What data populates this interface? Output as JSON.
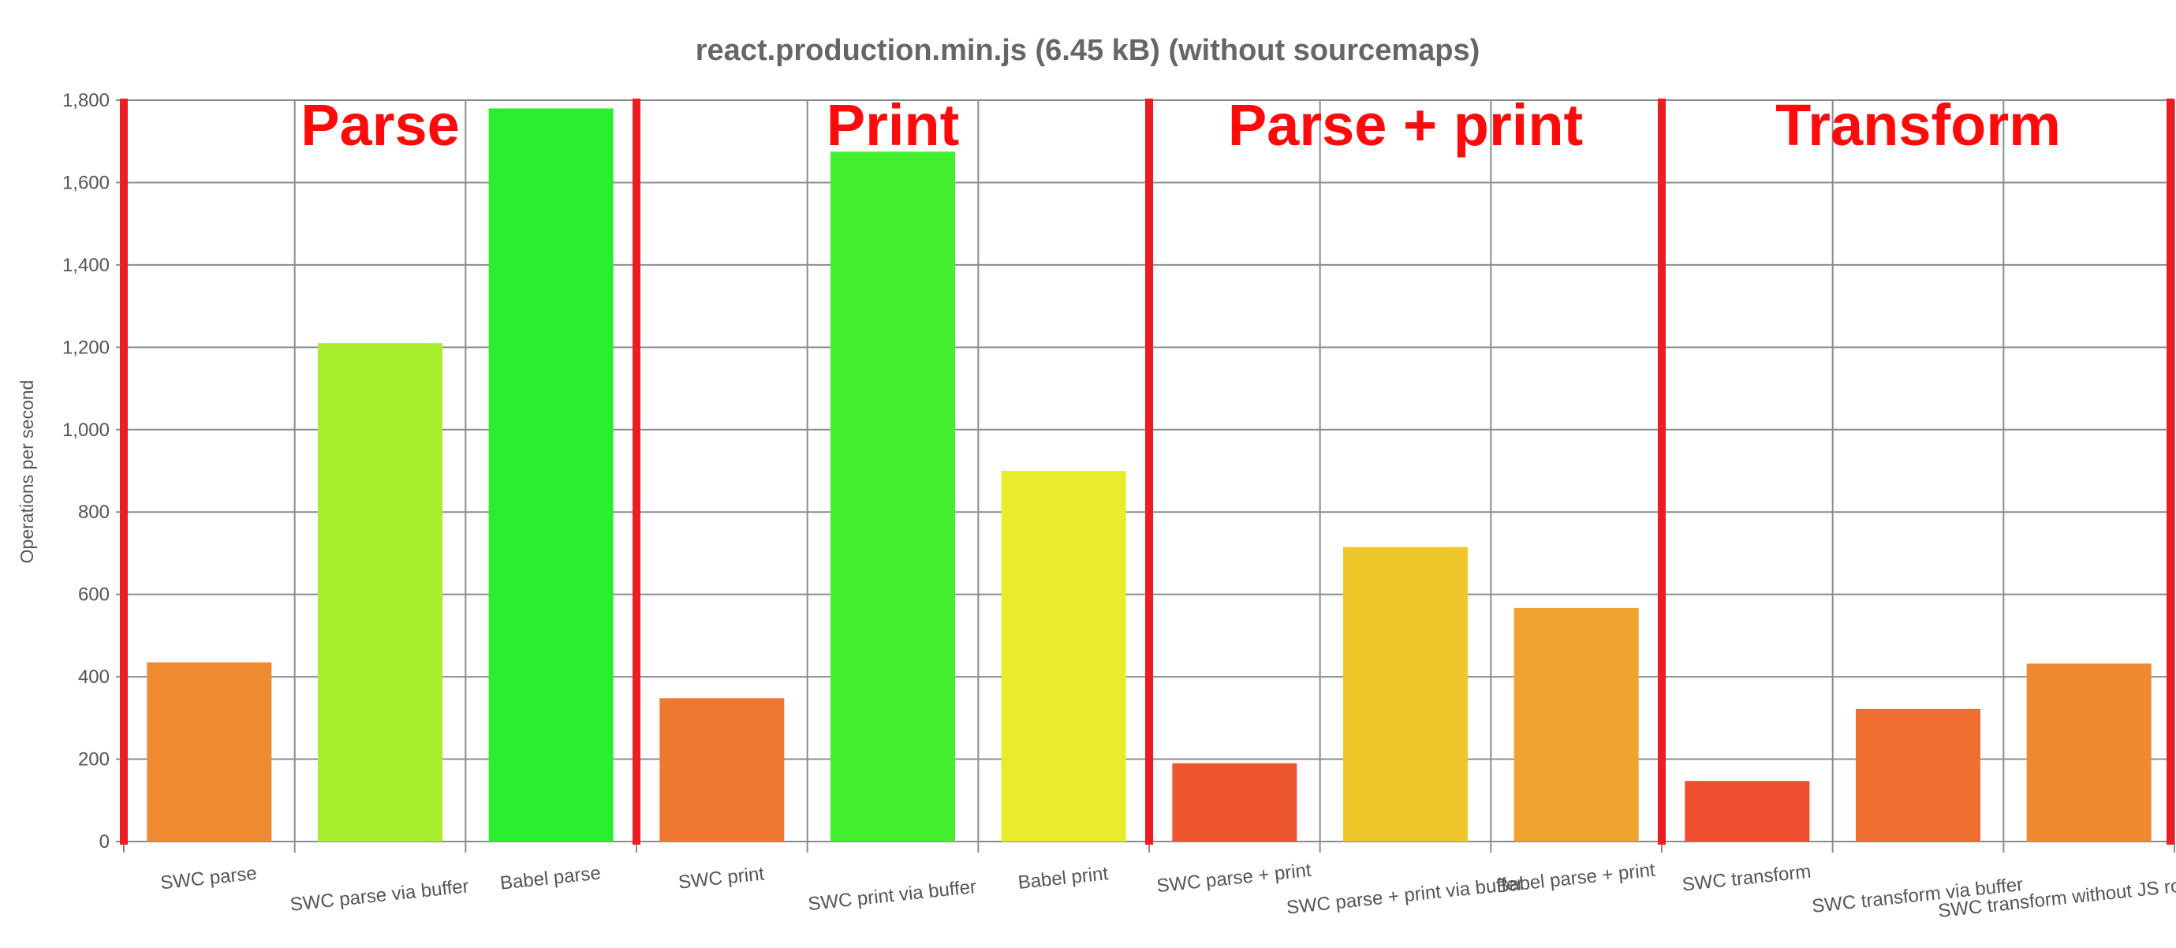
{
  "chart_data": {
    "type": "bar",
    "title": "react.production.min.js (6.45 kB) (without sourcemaps)",
    "xlabel": "",
    "ylabel": "Operations per second",
    "ylim": [
      0,
      1800
    ],
    "yticks": [
      0,
      200,
      400,
      600,
      800,
      1000,
      1200,
      1400,
      1600,
      1800
    ],
    "ytick_labels": [
      "0",
      "200",
      "400",
      "600",
      "800",
      "1,000",
      "1,200",
      "1,400",
      "1,600",
      "1,800"
    ],
    "grid": true,
    "categories": [
      "SWC parse",
      "SWC parse via buffer",
      "Babel parse",
      "SWC print",
      "SWC print via buffer",
      "Babel print",
      "SWC parse + print",
      "SWC parse + print via buffer",
      "Babel parse + print",
      "SWC transform",
      "SWC transform via buffer",
      "SWC transform without JS roundtrip"
    ],
    "values": [
      435,
      1210,
      1780,
      348,
      1675,
      900,
      190,
      715,
      567,
      147,
      322,
      432
    ],
    "colors": [
      "#f08a30",
      "#a8ee2e",
      "#2bee2e",
      "#ef7730",
      "#42ee2e",
      "#e9ec2b",
      "#ec552e",
      "#eec72b",
      "#eea42e",
      "#ee4f2e",
      "#ef6f30",
      "#ef8930"
    ],
    "groups": [
      {
        "label": "Parse",
        "start": 0,
        "end": 2
      },
      {
        "label": "Print",
        "start": 3,
        "end": 5
      },
      {
        "label": "Parse + print",
        "start": 6,
        "end": 8
      },
      {
        "label": "Transform",
        "start": 9,
        "end": 11
      }
    ],
    "separator_color": "#ee1c25",
    "group_label_color": "#ff0a0a"
  }
}
